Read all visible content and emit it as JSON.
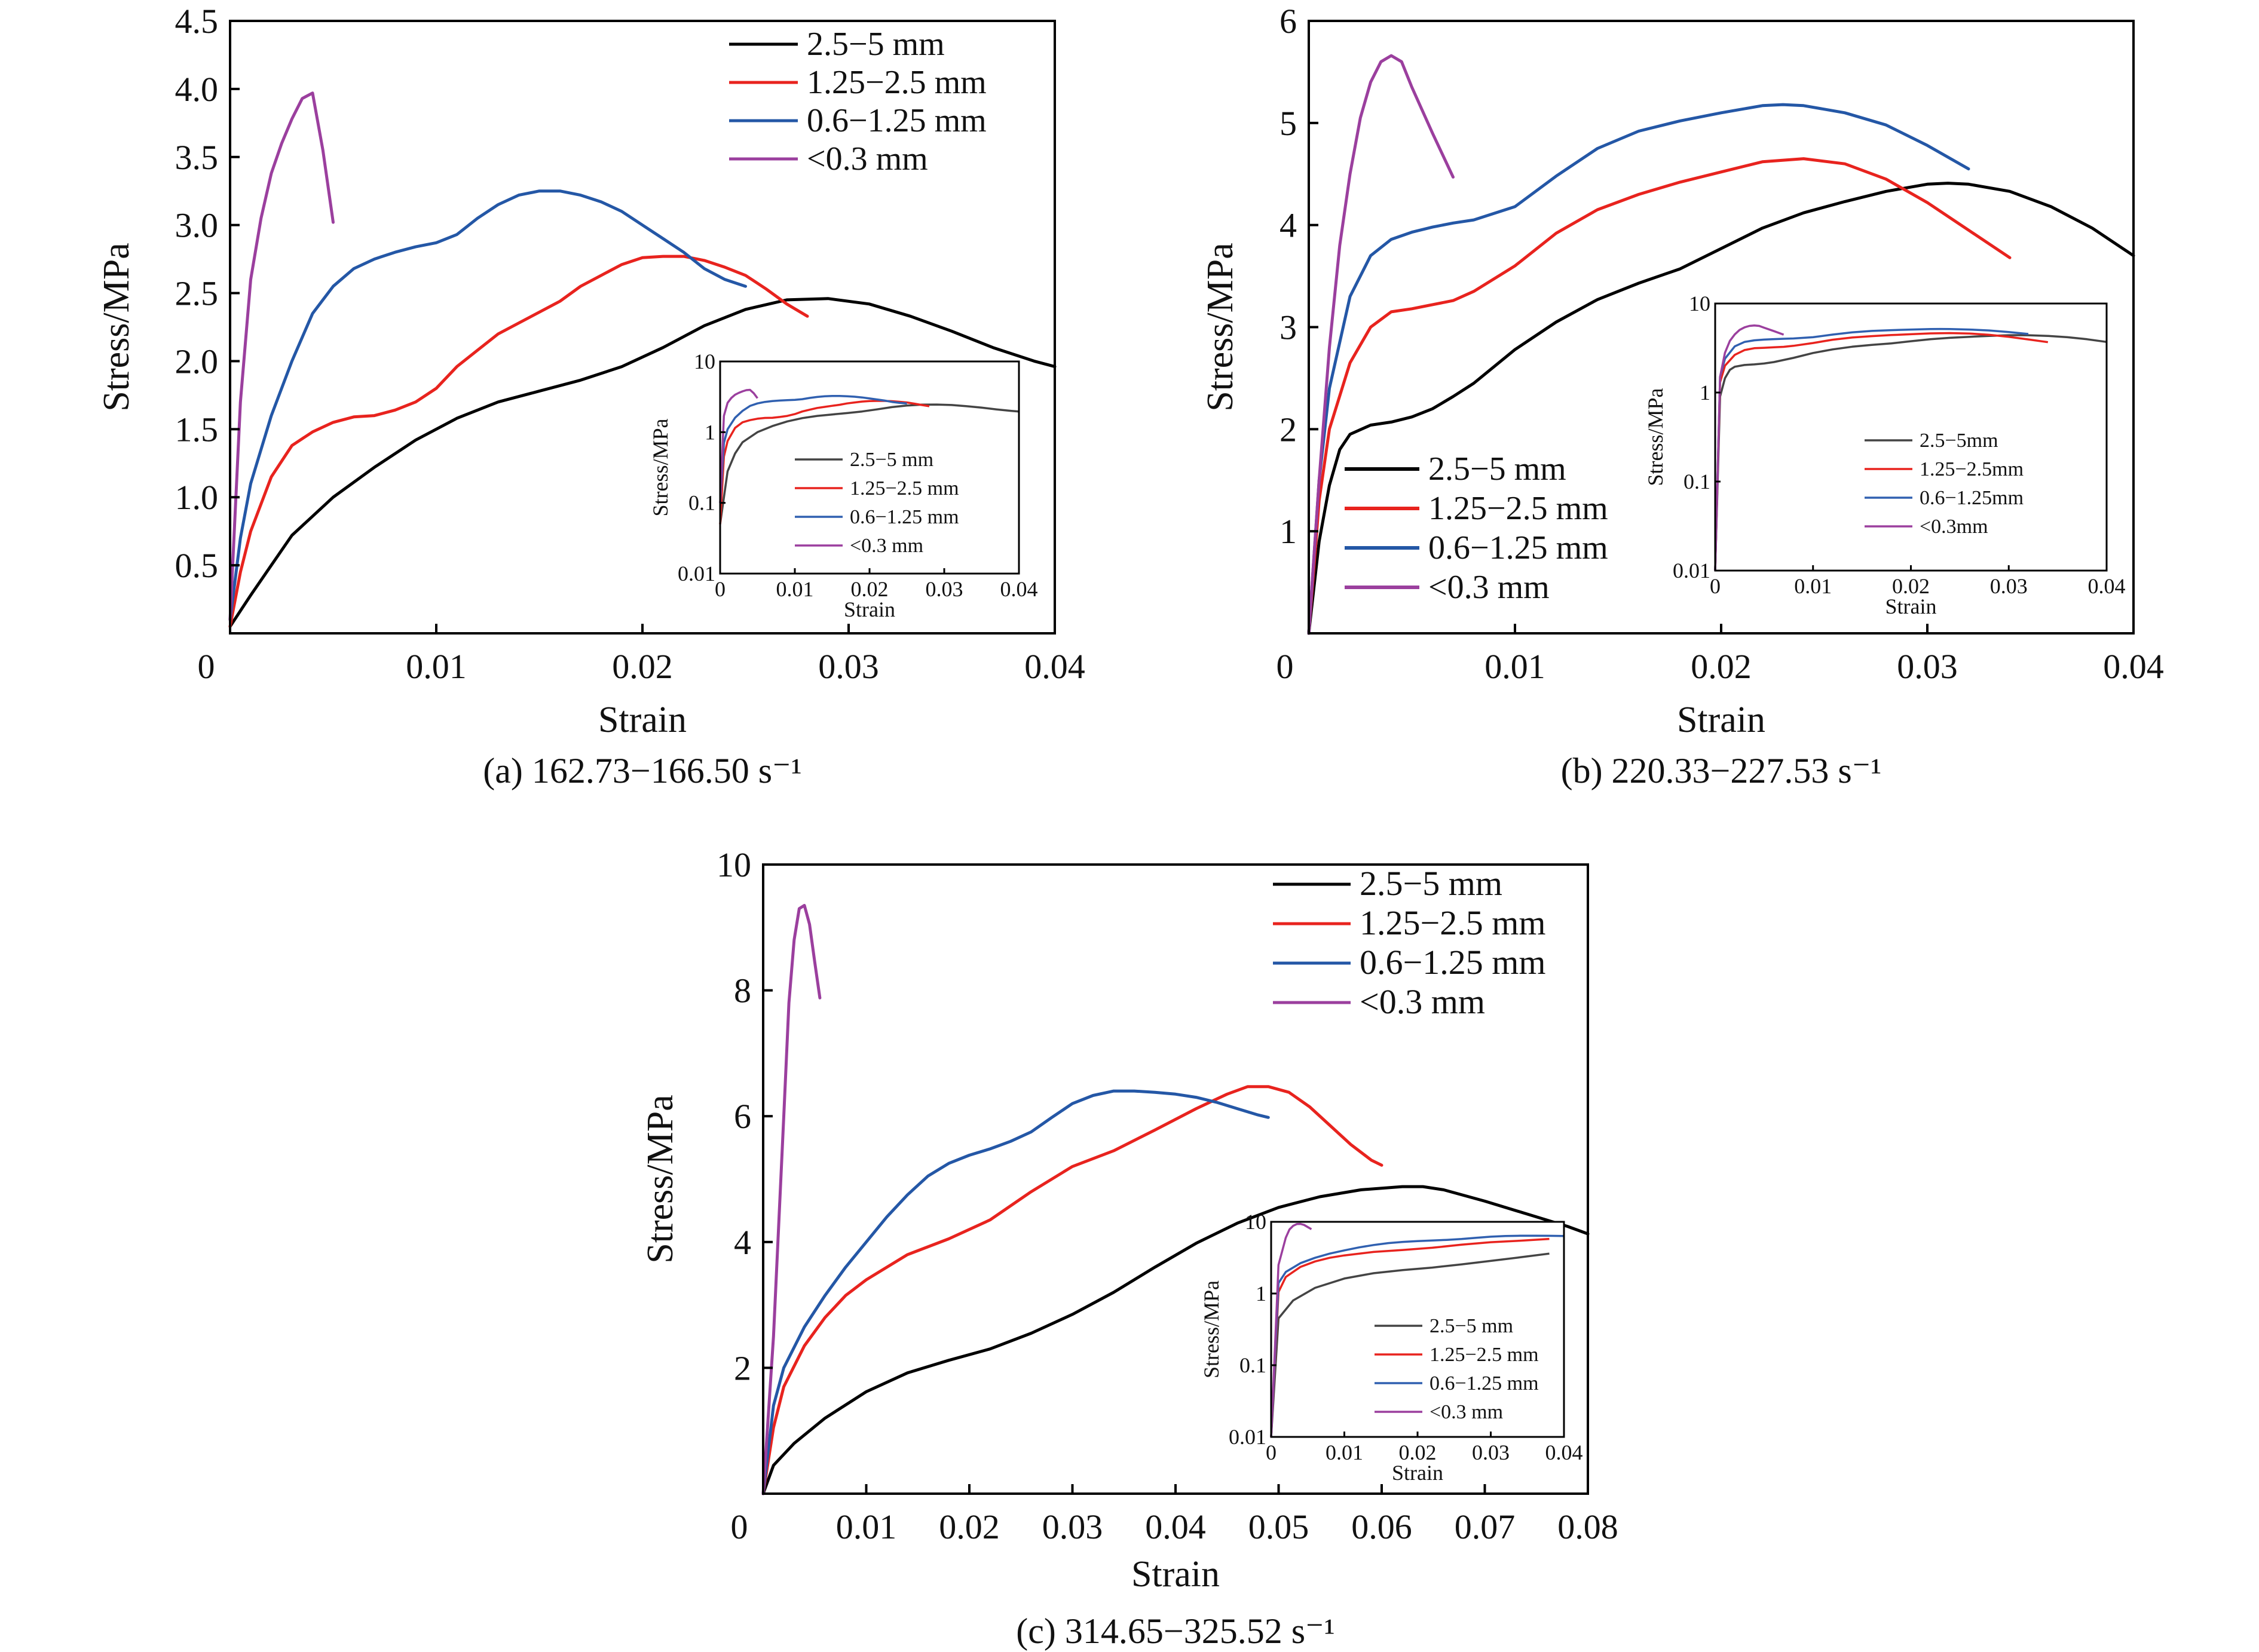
{
  "colors": {
    "2.5-5": "#000000",
    "1.25-2.5": "#e8231e",
    "0.6-1.25": "#2457a6",
    "<0.3": "#9b3f9e",
    "inset_2.5-5": "#444444",
    "inset_0.6-1.25": "#3060b0"
  },
  "chart_data": [
    {
      "type": "line",
      "caption": "(a) 162.73−166.50 s⁻¹",
      "xlabel": "Strain",
      "ylabel": "Stress/MPa",
      "xlim": [
        0,
        0.04
      ],
      "ylim": [
        0,
        4.5
      ],
      "xticks": [
        "0",
        "0.01",
        "0.02",
        "0.03",
        "0.04"
      ],
      "yticks": [
        "0.5",
        "1.0",
        "1.5",
        "2.0",
        "2.5",
        "3.0",
        "3.5",
        "4.0",
        "4.5"
      ],
      "legend_position": "top-right",
      "series": [
        {
          "name": "2.5−5 mm",
          "color_key": "2.5-5",
          "x": [
            0,
            0.001,
            0.002,
            0.003,
            0.005,
            0.007,
            0.009,
            0.011,
            0.013,
            0.015,
            0.017,
            0.019,
            0.021,
            0.023,
            0.025,
            0.027,
            0.029,
            0.031,
            0.033,
            0.035,
            0.037,
            0.039,
            0.04
          ],
          "y": [
            0.05,
            0.28,
            0.5,
            0.72,
            1.0,
            1.22,
            1.42,
            1.58,
            1.7,
            1.78,
            1.86,
            1.96,
            2.1,
            2.26,
            2.38,
            2.45,
            2.46,
            2.42,
            2.33,
            2.22,
            2.1,
            2.0,
            1.96
          ]
        },
        {
          "name": "1.25−2.5 mm",
          "color_key": "1.25-2.5",
          "x": [
            0,
            0.0005,
            0.001,
            0.002,
            0.003,
            0.004,
            0.005,
            0.006,
            0.007,
            0.008,
            0.009,
            0.01,
            0.011,
            0.012,
            0.013,
            0.014,
            0.015,
            0.016,
            0.017,
            0.018,
            0.019,
            0.02,
            0.021,
            0.022,
            0.023,
            0.024,
            0.025,
            0.026,
            0.027,
            0.028
          ],
          "y": [
            0.05,
            0.45,
            0.75,
            1.15,
            1.38,
            1.48,
            1.55,
            1.59,
            1.6,
            1.64,
            1.7,
            1.8,
            1.96,
            2.08,
            2.2,
            2.28,
            2.36,
            2.44,
            2.55,
            2.63,
            2.71,
            2.76,
            2.77,
            2.77,
            2.74,
            2.69,
            2.63,
            2.53,
            2.42,
            2.33
          ]
        },
        {
          "name": "0.6−1.25 mm",
          "color_key": "0.6-1.25",
          "x": [
            0,
            0.0005,
            0.001,
            0.002,
            0.003,
            0.004,
            0.005,
            0.006,
            0.007,
            0.008,
            0.009,
            0.01,
            0.011,
            0.012,
            0.013,
            0.014,
            0.015,
            0.016,
            0.017,
            0.018,
            0.019,
            0.02,
            0.021,
            0.022,
            0.023,
            0.024,
            0.025
          ],
          "y": [
            0.1,
            0.7,
            1.1,
            1.6,
            2.0,
            2.35,
            2.55,
            2.68,
            2.75,
            2.8,
            2.84,
            2.87,
            2.93,
            3.05,
            3.15,
            3.22,
            3.25,
            3.25,
            3.22,
            3.17,
            3.1,
            3.0,
            2.9,
            2.8,
            2.68,
            2.6,
            2.55
          ]
        },
        {
          "name": "<0.3 mm",
          "color_key": "<0.3",
          "x": [
            0,
            0.0005,
            0.001,
            0.0015,
            0.002,
            0.0025,
            0.003,
            0.0035,
            0.004,
            0.0045,
            0.005
          ],
          "y": [
            0.1,
            1.7,
            2.6,
            3.05,
            3.38,
            3.6,
            3.78,
            3.93,
            3.97,
            3.55,
            3.02
          ]
        }
      ],
      "inset": {
        "xlabel": "Strain",
        "ylabel": "Stress/MPa",
        "xlim": [
          0,
          0.04
        ],
        "ylog": [
          0.01,
          10
        ],
        "xticks": [
          "0",
          "0.01",
          "0.02",
          "0.03",
          "0.04"
        ],
        "yticks": [
          "0.01",
          "0.1",
          "1",
          "10"
        ],
        "legend": [
          "2.5−5 mm",
          "1.25−2.5 mm",
          "0.6−1.25 mm",
          "<0.3 mm"
        ]
      }
    },
    {
      "type": "line",
      "caption": "(b) 220.33−227.53 s⁻¹",
      "xlabel": "Strain",
      "ylabel": "Stress/MPa",
      "xlim": [
        0,
        0.04
      ],
      "ylim": [
        0,
        6
      ],
      "xticks": [
        "0",
        "0.01",
        "0.02",
        "0.03",
        "0.04"
      ],
      "yticks": [
        "1",
        "2",
        "3",
        "4",
        "5",
        "6"
      ],
      "legend_position": "bottom-left",
      "series": [
        {
          "name": "2.5−5 mm",
          "color_key": "2.5-5",
          "x": [
            0,
            0.0005,
            0.001,
            0.0015,
            0.002,
            0.003,
            0.004,
            0.005,
            0.006,
            0.007,
            0.008,
            0.01,
            0.012,
            0.014,
            0.016,
            0.018,
            0.02,
            0.022,
            0.024,
            0.026,
            0.028,
            0.03,
            0.031,
            0.032,
            0.034,
            0.036,
            0.038,
            0.04
          ],
          "y": [
            0,
            0.9,
            1.45,
            1.8,
            1.95,
            2.04,
            2.07,
            2.12,
            2.2,
            2.32,
            2.45,
            2.78,
            3.05,
            3.27,
            3.43,
            3.57,
            3.77,
            3.97,
            4.12,
            4.23,
            4.33,
            4.4,
            4.41,
            4.4,
            4.33,
            4.18,
            3.97,
            3.7
          ]
        },
        {
          "name": "1.25−2.5 mm",
          "color_key": "1.25-2.5",
          "x": [
            0,
            0.0005,
            0.001,
            0.002,
            0.003,
            0.004,
            0.005,
            0.006,
            0.007,
            0.008,
            0.01,
            0.012,
            0.014,
            0.016,
            0.018,
            0.02,
            0.022,
            0.024,
            0.026,
            0.028,
            0.03,
            0.032,
            0.034
          ],
          "y": [
            0,
            1.3,
            2.0,
            2.65,
            3.0,
            3.15,
            3.18,
            3.22,
            3.26,
            3.35,
            3.6,
            3.92,
            4.15,
            4.3,
            4.42,
            4.52,
            4.62,
            4.65,
            4.6,
            4.45,
            4.22,
            3.95,
            3.68
          ]
        },
        {
          "name": "0.6−1.25 mm",
          "color_key": "0.6-1.25",
          "x": [
            0,
            0.0005,
            0.001,
            0.002,
            0.003,
            0.004,
            0.005,
            0.006,
            0.007,
            0.008,
            0.01,
            0.012,
            0.014,
            0.016,
            0.018,
            0.02,
            0.022,
            0.023,
            0.024,
            0.026,
            0.028,
            0.03,
            0.032
          ],
          "y": [
            0,
            1.5,
            2.4,
            3.3,
            3.7,
            3.86,
            3.93,
            3.98,
            4.02,
            4.05,
            4.18,
            4.48,
            4.75,
            4.92,
            5.02,
            5.1,
            5.17,
            5.18,
            5.17,
            5.1,
            4.98,
            4.78,
            4.55
          ]
        },
        {
          "name": "<0.3 mm",
          "color_key": "<0.3",
          "x": [
            0,
            0.0005,
            0.001,
            0.0015,
            0.002,
            0.0025,
            0.003,
            0.0035,
            0.004,
            0.0045,
            0.005,
            0.006,
            0.007
          ],
          "y": [
            0,
            1.5,
            2.8,
            3.8,
            4.5,
            5.05,
            5.4,
            5.6,
            5.66,
            5.6,
            5.35,
            4.9,
            4.47
          ]
        }
      ],
      "inset": {
        "xlabel": "Strain",
        "ylabel": "Stress/MPa",
        "xlim": [
          0,
          0.04
        ],
        "ylog": [
          0.01,
          10
        ],
        "xticks": [
          "0",
          "0.01",
          "0.02",
          "0.03",
          "0.04"
        ],
        "yticks": [
          "0.01",
          "0.1",
          "1",
          "10"
        ],
        "legend": [
          "2.5−5mm",
          "1.25−2.5mm",
          "0.6−1.25mm",
          "<0.3mm"
        ]
      }
    },
    {
      "type": "line",
      "caption": "(c) 314.65−325.52 s⁻¹",
      "xlabel": "Strain",
      "ylabel": "Stress/MPa",
      "xlim": [
        0,
        0.08
      ],
      "ylim": [
        0,
        10
      ],
      "xticks": [
        "0",
        "0.01",
        "0.02",
        "0.03",
        "0.04",
        "0.05",
        "0.06",
        "0.07",
        "0.08"
      ],
      "yticks": [
        "2",
        "4",
        "6",
        "8",
        "10"
      ],
      "legend_position": "top-right",
      "series": [
        {
          "name": "2.5−5 mm",
          "color_key": "2.5-5",
          "x": [
            0,
            0.001,
            0.003,
            0.006,
            0.01,
            0.014,
            0.018,
            0.022,
            0.026,
            0.03,
            0.034,
            0.038,
            0.042,
            0.046,
            0.05,
            0.054,
            0.058,
            0.062,
            0.064,
            0.066,
            0.07,
            0.074,
            0.078,
            0.08
          ],
          "y": [
            0,
            0.45,
            0.8,
            1.2,
            1.62,
            1.92,
            2.12,
            2.3,
            2.55,
            2.85,
            3.2,
            3.6,
            3.98,
            4.3,
            4.55,
            4.72,
            4.83,
            4.88,
            4.88,
            4.83,
            4.65,
            4.45,
            4.25,
            4.13
          ]
        },
        {
          "name": "1.25−2.5 mm",
          "color_key": "1.25-2.5",
          "x": [
            0,
            0.001,
            0.002,
            0.004,
            0.006,
            0.008,
            0.01,
            0.014,
            0.018,
            0.022,
            0.026,
            0.03,
            0.034,
            0.038,
            0.042,
            0.045,
            0.047,
            0.049,
            0.051,
            0.053,
            0.055,
            0.057,
            0.059,
            0.06
          ],
          "y": [
            0,
            1.05,
            1.7,
            2.35,
            2.8,
            3.15,
            3.4,
            3.8,
            4.05,
            4.35,
            4.8,
            5.2,
            5.45,
            5.78,
            6.12,
            6.35,
            6.47,
            6.47,
            6.38,
            6.15,
            5.85,
            5.55,
            5.3,
            5.22
          ]
        },
        {
          "name": "0.6−1.25 mm",
          "color_key": "0.6-1.25",
          "x": [
            0,
            0.001,
            0.002,
            0.004,
            0.006,
            0.008,
            0.01,
            0.012,
            0.014,
            0.016,
            0.018,
            0.02,
            0.022,
            0.024,
            0.026,
            0.028,
            0.03,
            0.032,
            0.034,
            0.036,
            0.038,
            0.04,
            0.042,
            0.044,
            0.046,
            0.048,
            0.049
          ],
          "y": [
            0,
            1.4,
            2.0,
            2.65,
            3.15,
            3.6,
            4.0,
            4.4,
            4.75,
            5.05,
            5.25,
            5.38,
            5.48,
            5.6,
            5.75,
            5.98,
            6.2,
            6.33,
            6.4,
            6.4,
            6.38,
            6.35,
            6.3,
            6.22,
            6.12,
            6.02,
            5.98
          ]
        },
        {
          "name": "<0.3 mm",
          "color_key": "<0.3",
          "x": [
            0,
            0.001,
            0.002,
            0.0025,
            0.003,
            0.0035,
            0.004,
            0.0045,
            0.005,
            0.0055
          ],
          "y": [
            0,
            2.5,
            6.0,
            7.8,
            8.8,
            9.3,
            9.35,
            9.05,
            8.45,
            7.88
          ]
        }
      ],
      "inset": {
        "xlabel": "Strain",
        "ylabel": "Stress/MPa",
        "xlim": [
          0,
          0.04
        ],
        "ylog": [
          0.01,
          10
        ],
        "xticks": [
          "0",
          "0.01",
          "0.02",
          "0.03",
          "0.04"
        ],
        "yticks": [
          "0.01",
          "0.1",
          "1",
          "10"
        ],
        "legend": [
          "2.5−5 mm",
          "1.25−2.5 mm",
          "0.6−1.25 mm",
          "<0.3 mm"
        ]
      }
    }
  ]
}
